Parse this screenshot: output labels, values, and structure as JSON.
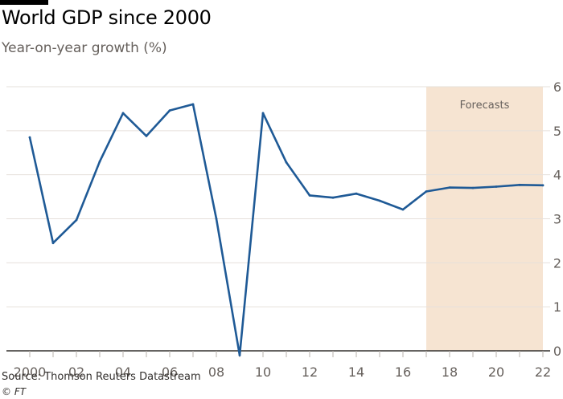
{
  "header": {
    "title": "World GDP since 2000",
    "subtitle": "Year-on-year growth (%)"
  },
  "footer": {
    "source": "Source: Thomson Reuters Datastream",
    "credit": "© FT"
  },
  "colors": {
    "line": "#1f5a96",
    "forecast_band": "#f6e4d2",
    "grid": "#e6e0db",
    "axis": "#33302e",
    "text": "#66605c"
  },
  "chart_data": {
    "type": "line",
    "title": "World GDP since 2000",
    "subtitle": "Year-on-year growth (%)",
    "xlabel": "",
    "ylabel": "",
    "x": [
      2000,
      2001,
      2002,
      2003,
      2004,
      2005,
      2006,
      2007,
      2008,
      2009,
      2010,
      2011,
      2012,
      2013,
      2014,
      2015,
      2016,
      2017,
      2018,
      2019,
      2020,
      2021,
      2022
    ],
    "series": [
      {
        "values": [
          4.85,
          2.45,
          2.97,
          4.3,
          5.4,
          4.88,
          5.46,
          5.6,
          3.0,
          -0.1,
          5.4,
          4.28,
          3.53,
          3.48,
          3.57,
          3.41,
          3.21,
          3.62,
          3.71,
          3.7,
          3.73,
          3.77,
          3.76
        ]
      }
    ],
    "xlim": [
      2000,
      2022
    ],
    "ylim": [
      0,
      6
    ],
    "x_ticks": [
      2000,
      2002,
      2004,
      2006,
      2008,
      2010,
      2012,
      2014,
      2016,
      2018,
      2020,
      2022
    ],
    "x_tick_labels": [
      "2000",
      "02",
      "04",
      "06",
      "08",
      "10",
      "12",
      "14",
      "16",
      "18",
      "20",
      "22"
    ],
    "y_ticks": [
      0,
      1,
      2,
      3,
      4,
      5,
      6
    ],
    "y_tick_labels": [
      "0",
      "1",
      "2",
      "3",
      "4",
      "5",
      "6"
    ],
    "y_axis_side": "right",
    "grid": "horizontal",
    "annotations": [
      {
        "type": "shaded_region",
        "x_start": 2017,
        "x_end": 2022,
        "label": "Forecasts"
      }
    ]
  }
}
